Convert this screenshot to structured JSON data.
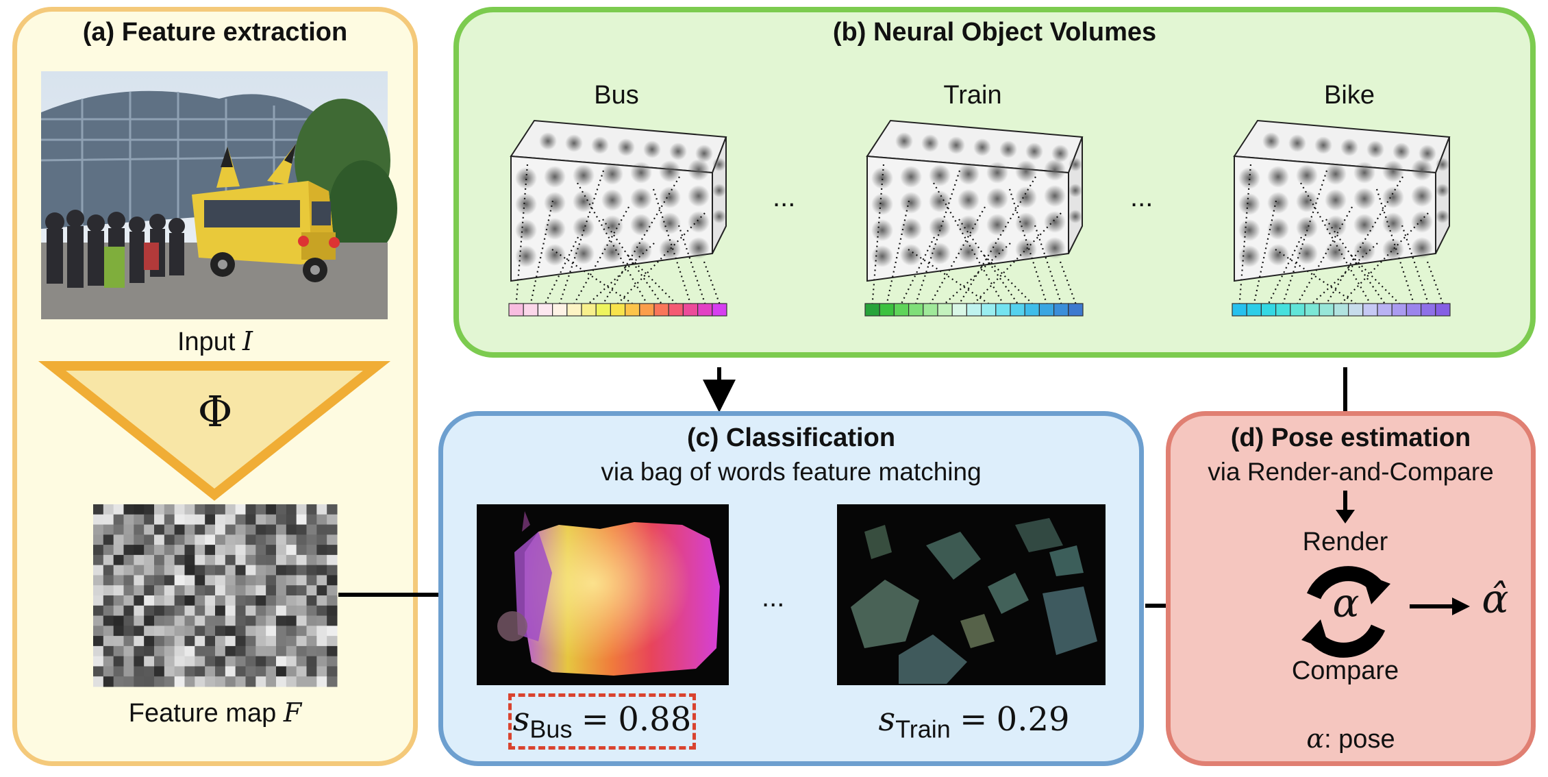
{
  "panel_a": {
    "title": "(a) Feature extraction",
    "input_label": "Input",
    "input_symbol": "I",
    "phi_symbol": "Φ",
    "feature_label": "Feature map",
    "feature_symbol": "F"
  },
  "panel_b": {
    "title": "(b) Neural Object Volumes",
    "volumes": [
      {
        "label": "Bus"
      },
      {
        "label": "Train"
      },
      {
        "label": "Bike"
      }
    ],
    "ellipsis": "...",
    "colors": {
      "bus": [
        "#f8bde0",
        "#fbd7ea",
        "#fde8f0",
        "#fef3e6",
        "#fdf4c4",
        "#f7f08c",
        "#eef45e",
        "#f8e34c",
        "#fcc44b",
        "#fb9e4b",
        "#f9765a",
        "#f45a73",
        "#ec4c9a",
        "#e241c4",
        "#d63ff0"
      ],
      "train": [
        "#27a33a",
        "#3cc13f",
        "#5fd45a",
        "#7fdf79",
        "#a0e99a",
        "#c4f2be",
        "#d9f7e6",
        "#bff3ef",
        "#99eef0",
        "#73e3f0",
        "#54d2ee",
        "#3fbde9",
        "#3aa6e2",
        "#3b8ed9",
        "#3d79cf"
      ],
      "bike": [
        "#27c1ee",
        "#2dcde8",
        "#34d8e3",
        "#46e0dd",
        "#60e5d8",
        "#7be7d5",
        "#97e6d8",
        "#b1e3df",
        "#c7dcec",
        "#c6c9f4",
        "#b9b2f3",
        "#aa9bf0",
        "#9b85ec",
        "#8e70e8",
        "#855fe4"
      ]
    }
  },
  "panel_c": {
    "title": "(c) Classification",
    "subtitle": "via bag of words feature matching",
    "ellipsis": "...",
    "scores": [
      {
        "symbol": "s",
        "subscript": "Bus",
        "equals": "=",
        "value": "0.88",
        "highlighted": true
      },
      {
        "symbol": "s",
        "subscript": "Train",
        "equals": "=",
        "value": "0.29",
        "highlighted": false
      }
    ]
  },
  "panel_d": {
    "title": "(d) Pose estimation",
    "subtitle": "via Render-and-Compare",
    "render_label": "Render",
    "compare_label": "Compare",
    "alpha_symbol": "α",
    "alpha_hat_symbol": "α̂",
    "pose_symbol": "α",
    "pose_label": ": pose"
  },
  "accent_colors": {
    "panel_a_border": "#f4c97a",
    "panel_b_border": "#7ccb4f",
    "panel_c_border": "#6d9fcf",
    "panel_d_border": "#e07f72",
    "highlight_box": "#d9432f"
  }
}
